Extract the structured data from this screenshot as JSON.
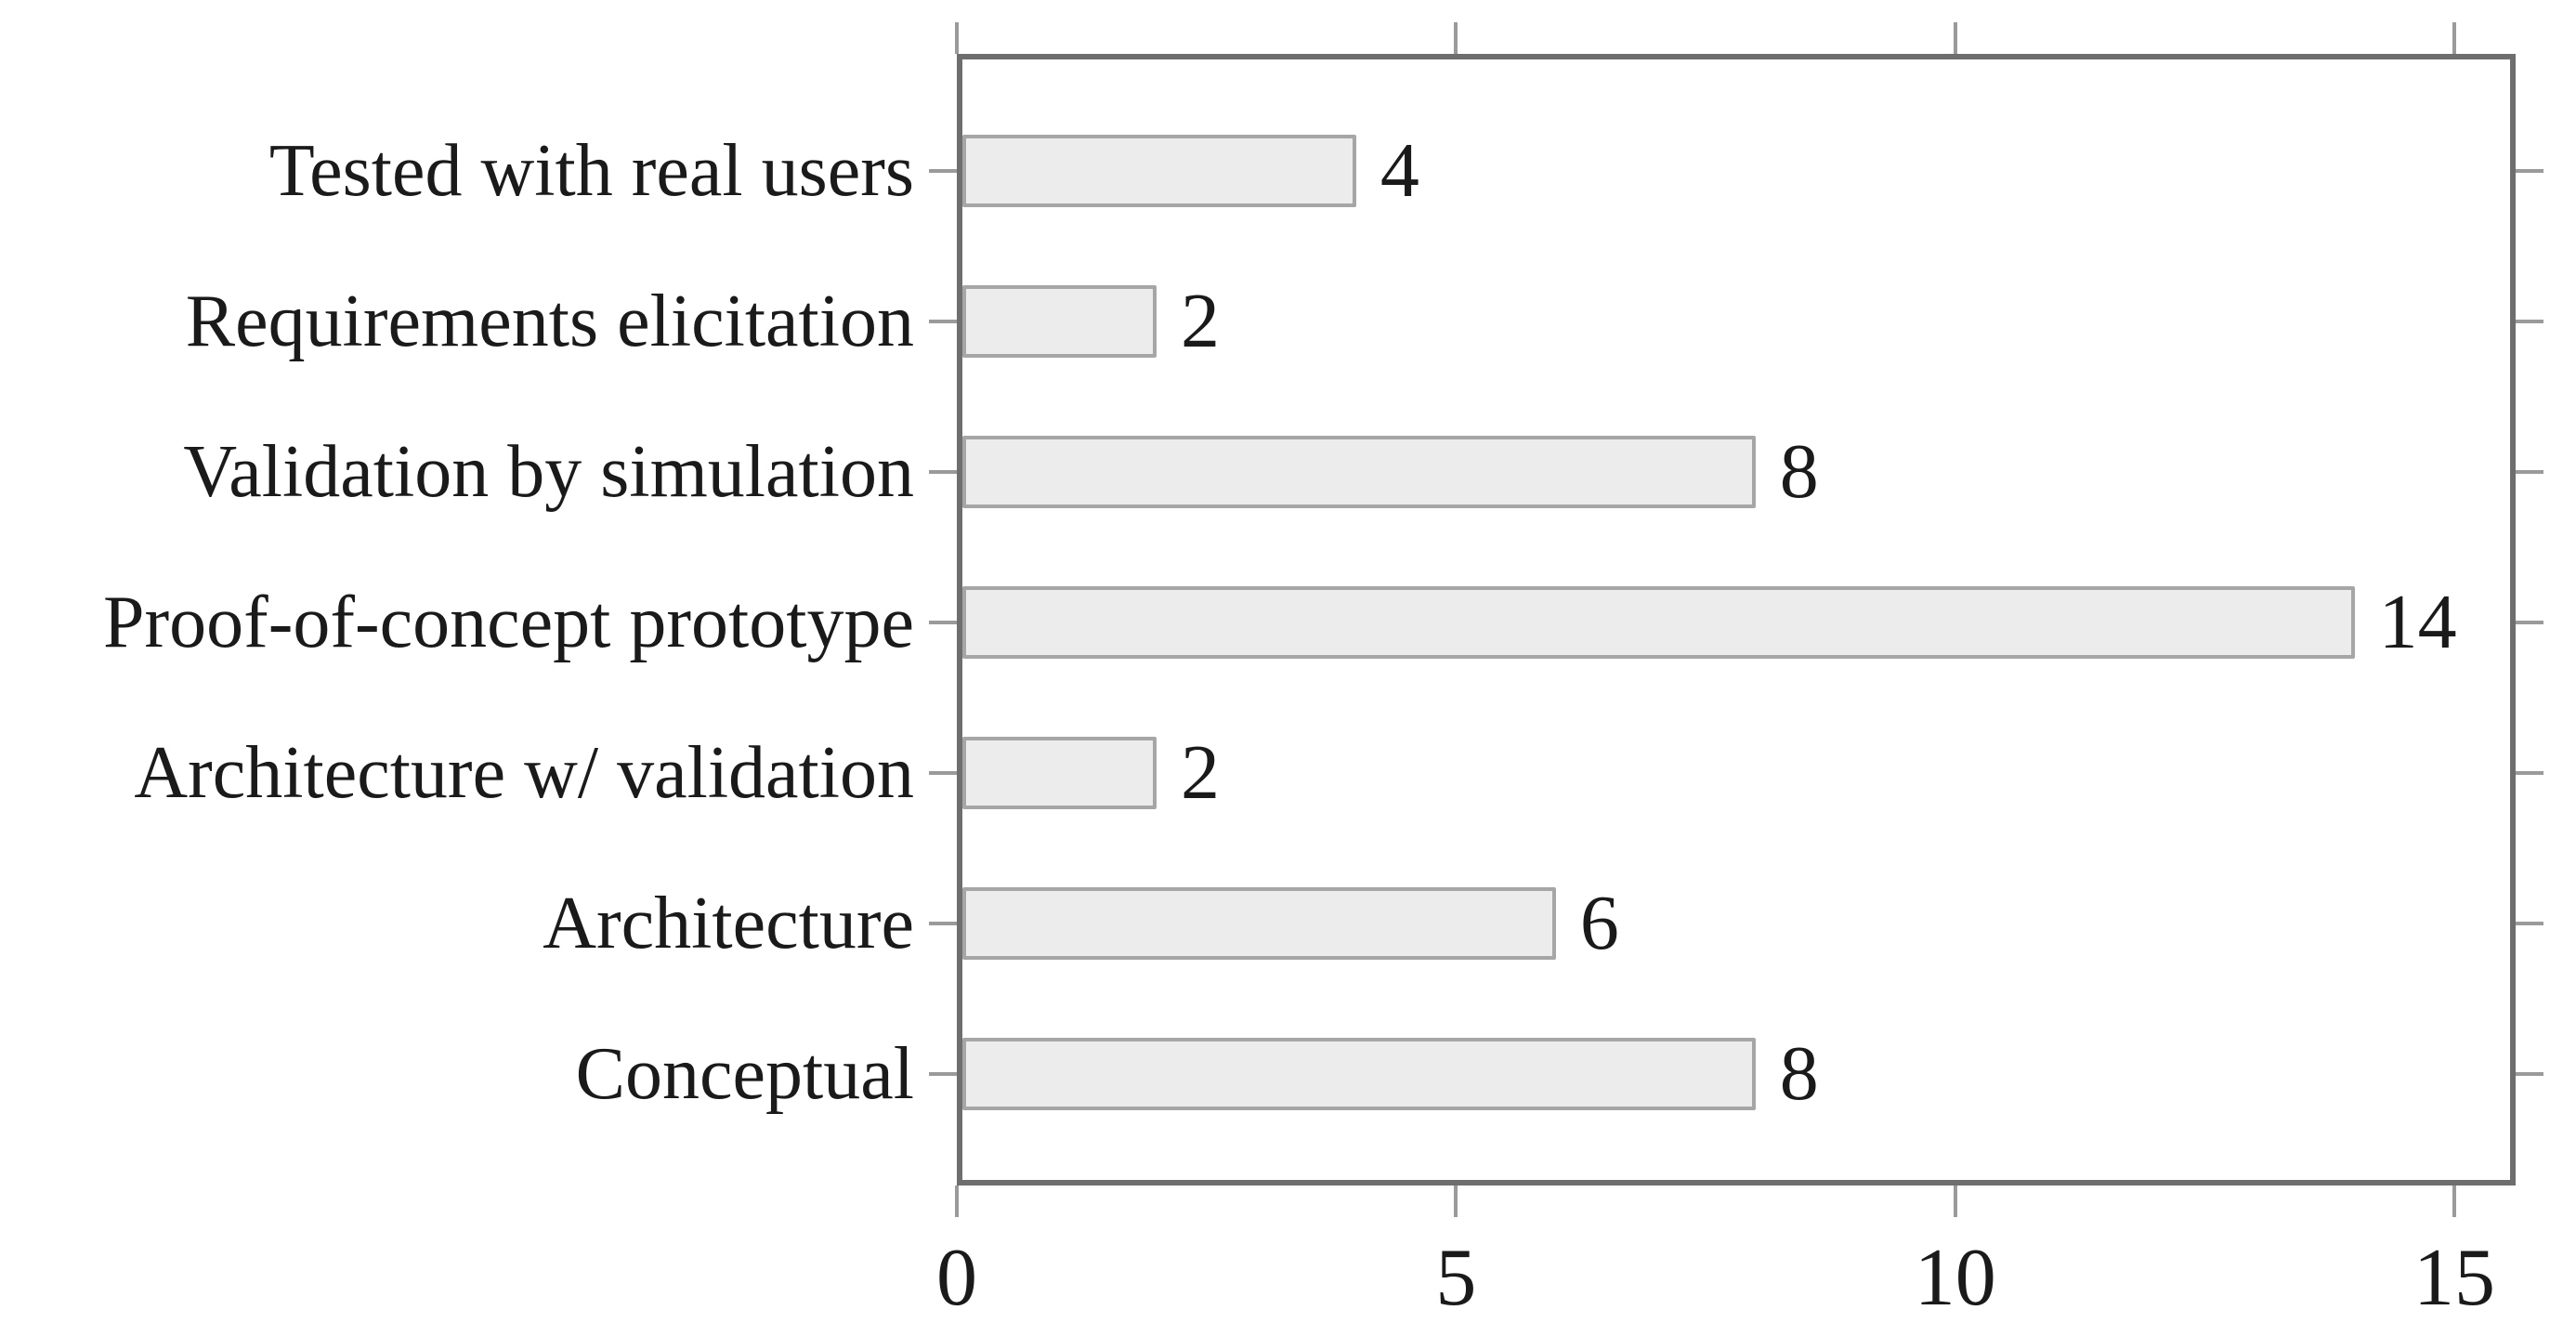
{
  "figure": {
    "background": "#ffffff"
  },
  "chart_data": {
    "type": "bar",
    "orientation": "horizontal",
    "title": "",
    "xlabel": "",
    "ylabel": "",
    "categories": [
      "Tested with real users",
      "Requirements elicitation",
      "Validation by simulation",
      "Proof-of-concept prototype",
      "Architecture w/ validation",
      "Architecture",
      "Conceptual"
    ],
    "values": [
      4,
      2,
      8,
      14,
      2,
      6,
      8
    ],
    "value_labels": [
      "4",
      "2",
      "8",
      "14",
      "2",
      "6",
      "8"
    ],
    "x_ticks": [
      0,
      5,
      10,
      15
    ],
    "x_tick_labels": [
      "0",
      "5",
      "10",
      "15"
    ],
    "xlim": [
      0,
      15.6
    ],
    "grid": false,
    "legend_position": "none",
    "ticks_mirrored": true,
    "colors": {
      "bar_fill": "#ececec",
      "bar_border": "#a6a6a6",
      "axis_border": "#6e6e6e",
      "tick": "#9a9a9a",
      "text": "#1a1a1a"
    }
  }
}
